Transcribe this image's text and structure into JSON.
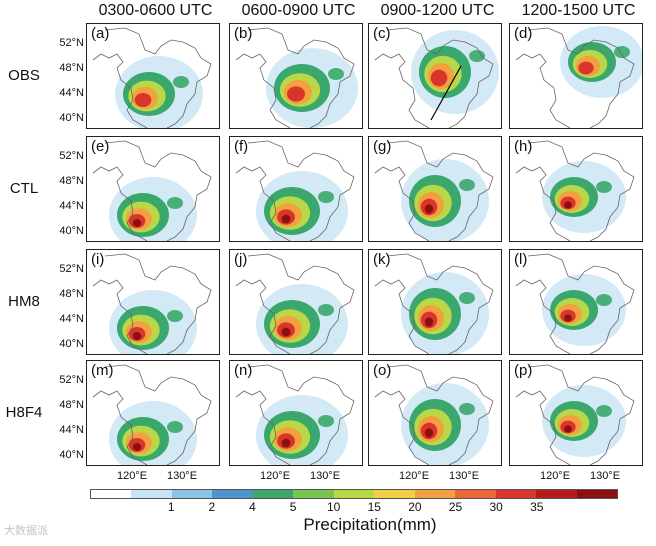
{
  "columns": [
    "0300-0600 UTC",
    "0600-0900 UTC",
    "0900-1200 UTC",
    "1200-1500 UTC"
  ],
  "rows": [
    "OBS",
    "CTL",
    "HM8",
    "H8F4"
  ],
  "panel_labels": [
    [
      "(a)",
      "(b)",
      "(c)",
      "(d)"
    ],
    [
      "(e)",
      "(f)",
      "(g)",
      "(h)"
    ],
    [
      "(i)",
      "(j)",
      "(k)",
      "(l)"
    ],
    [
      "(m)",
      "(n)",
      "(o)",
      "(p)"
    ]
  ],
  "lat_labels": [
    "52°N",
    "48°N",
    "44°N",
    "40°N"
  ],
  "lon_labels": [
    "120°E",
    "130°E"
  ],
  "colorbar": {
    "label": "Precipitation(mm)",
    "ticks": [
      "1",
      "2",
      "4",
      "5",
      "10",
      "15",
      "20",
      "25",
      "30",
      "35"
    ],
    "colors": [
      "#ffffff",
      "#c8e4f4",
      "#8cc4e8",
      "#4c94cc",
      "#3aa86c",
      "#78c450",
      "#b8d848",
      "#f0d048",
      "#f4a040",
      "#ec6838",
      "#d8362c",
      "#b41c1c",
      "#8c1010"
    ]
  },
  "watermark": "大数据派"
}
